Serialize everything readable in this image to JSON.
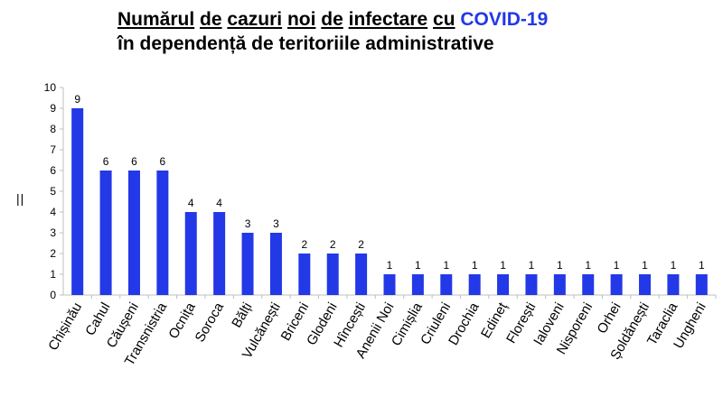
{
  "title": {
    "w1": "Numărul",
    "w2": "de",
    "w3": "cazuri",
    "w4": "noi",
    "w5": "de",
    "w6": "infectare",
    "w7": "cu",
    "highlight": "COVID-19",
    "line2": "în dependență de teritoriile administrative"
  },
  "ylabel": "||",
  "colors": {
    "bar": "#2338e6",
    "highlight": "#2338e6",
    "axis": "#bfbfbf"
  },
  "chart_data": {
    "type": "bar",
    "categories": [
      "Chișinău",
      "Cahul",
      "Căușeni",
      "Transnistria",
      "Ocnița",
      "Soroca",
      "Bălți",
      "Vulcănești",
      "Briceni",
      "Glodeni",
      "Hîncești",
      "Anenii Noi",
      "Cimișlia",
      "Criuleni",
      "Drochia",
      "Edineț",
      "Florești",
      "Ialoveni",
      "Nisporeni",
      "Orhei",
      "Șoldănești",
      "Taraclia",
      "Ungheni"
    ],
    "values": [
      9,
      6,
      6,
      6,
      4,
      4,
      3,
      3,
      2,
      2,
      2,
      1,
      1,
      1,
      1,
      1,
      1,
      1,
      1,
      1,
      1,
      1,
      1
    ],
    "ylim": [
      0,
      10
    ],
    "yticks": [
      0,
      1,
      2,
      3,
      4,
      5,
      6,
      7,
      8,
      9,
      10
    ],
    "grid": false,
    "data_labels": true
  }
}
